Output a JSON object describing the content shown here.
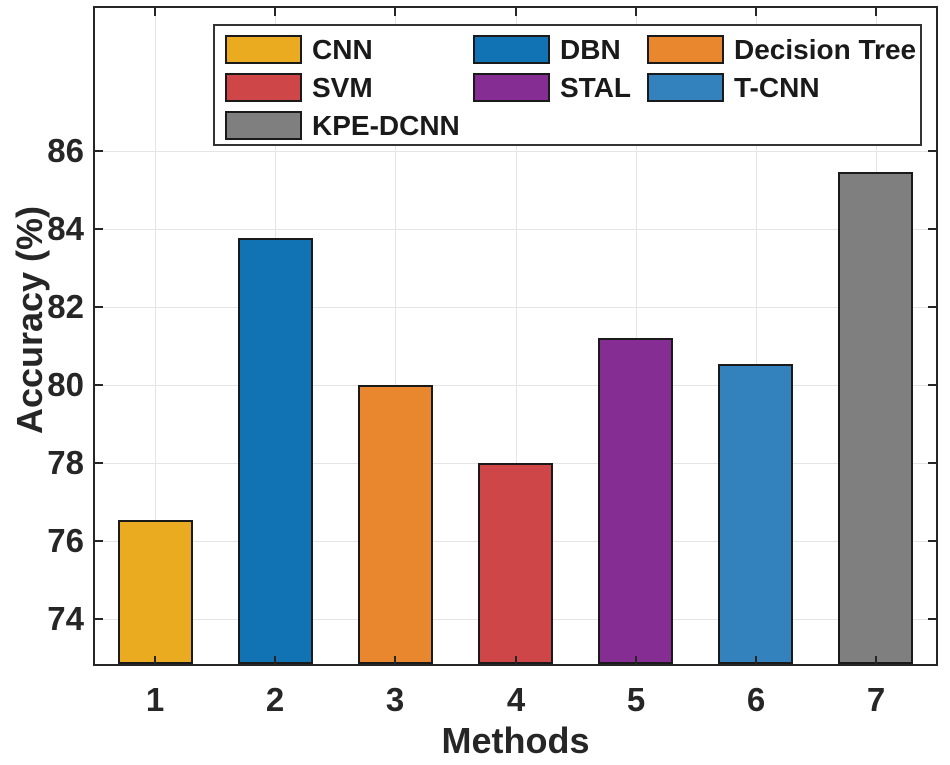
{
  "figure": {
    "background": "#ffffff",
    "axes_color": "#262626",
    "grid_color": "#e5e5e5",
    "bar_edge_color": "#1a1a1a",
    "legend_border_color": "#333333"
  },
  "chart_data": {
    "type": "bar",
    "title": "",
    "xlabel": "Methods",
    "ylabel": "Accuracy (%)",
    "categories": [
      "1",
      "2",
      "3",
      "4",
      "5",
      "6",
      "7"
    ],
    "series": [
      {
        "name": "CNN",
        "value": 76.55,
        "color": "#EAAB20"
      },
      {
        "name": "DBN",
        "value": 83.78,
        "color": "#1173B4"
      },
      {
        "name": "Decision Tree",
        "value": 80.0,
        "color": "#E8872D"
      },
      {
        "name": "SVM",
        "value": 78.0,
        "color": "#CE4647"
      },
      {
        "name": "STAL",
        "value": 81.2,
        "color": "#862D94"
      },
      {
        "name": "T-CNN",
        "value": 80.55,
        "color": "#3482BD"
      },
      {
        "name": "KPE-DCNN",
        "value": 85.45,
        "color": "#7F7F7F"
      }
    ],
    "y_tick_labels": [
      "86",
      "84",
      "82",
      "80",
      "78",
      "76",
      "74"
    ],
    "y_tick_values": [
      86,
      84,
      82,
      80,
      78,
      76,
      74
    ],
    "ylim": [
      72.8,
      89.7
    ],
    "grid": "on",
    "legend": {
      "position": "north-inside",
      "columns": 3
    }
  }
}
